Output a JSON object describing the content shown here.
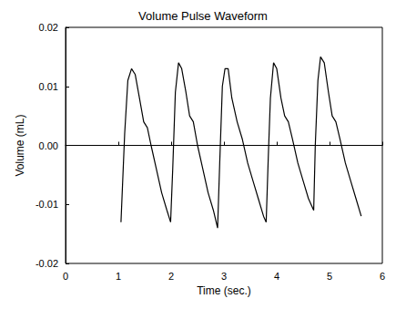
{
  "chart_data": {
    "type": "line",
    "title": "Volume Pulse Waveform",
    "x_label": "Time (sec.)",
    "y_label": "Volume (mL)",
    "x": [
      1.05,
      1.12,
      1.18,
      1.25,
      1.32,
      1.4,
      1.48,
      1.55,
      1.62,
      1.72,
      1.82,
      1.92,
      1.99,
      2.03,
      2.08,
      2.14,
      2.2,
      2.28,
      2.35,
      2.42,
      2.5,
      2.6,
      2.7,
      2.8,
      2.88,
      2.92,
      2.97,
      3.02,
      3.08,
      3.15,
      3.25,
      3.35,
      3.45,
      3.55,
      3.65,
      3.75,
      3.8,
      3.84,
      3.88,
      3.94,
      4.0,
      4.08,
      4.15,
      4.22,
      4.3,
      4.4,
      4.5,
      4.6,
      4.7,
      4.73,
      4.78,
      4.83,
      4.9,
      4.98,
      5.05,
      5.12,
      5.2,
      5.3,
      5.4,
      5.5,
      5.6
    ],
    "values": [
      -0.013,
      0.002,
      0.011,
      0.013,
      0.012,
      0.008,
      0.004,
      0.003,
      0.0,
      -0.004,
      -0.008,
      -0.011,
      -0.013,
      -0.004,
      0.009,
      0.014,
      0.013,
      0.009,
      0.005,
      0.004,
      0.0,
      -0.004,
      -0.008,
      -0.011,
      -0.014,
      -0.003,
      0.01,
      0.013,
      0.013,
      0.008,
      0.004,
      0.001,
      -0.003,
      -0.006,
      -0.009,
      -0.012,
      -0.013,
      -0.002,
      0.008,
      0.014,
      0.013,
      0.008,
      0.005,
      0.004,
      0.001,
      -0.003,
      -0.006,
      -0.009,
      -0.011,
      0.0,
      0.011,
      0.015,
      0.014,
      0.009,
      0.005,
      0.004,
      0.001,
      -0.003,
      -0.006,
      -0.009,
      -0.012
    ],
    "color": "#000000",
    "line_style": "solid",
    "marker": "none",
    "xlim": [
      0,
      6
    ],
    "xticks": [
      0,
      1,
      2,
      3,
      4,
      5,
      6
    ],
    "ylim": [
      -0.02,
      0.02
    ],
    "yticks": [
      -0.02,
      -0.01,
      {
        "value": 0,
        "label": "0.00"
      },
      0.01,
      0.02
    ],
    "grid": false
  }
}
